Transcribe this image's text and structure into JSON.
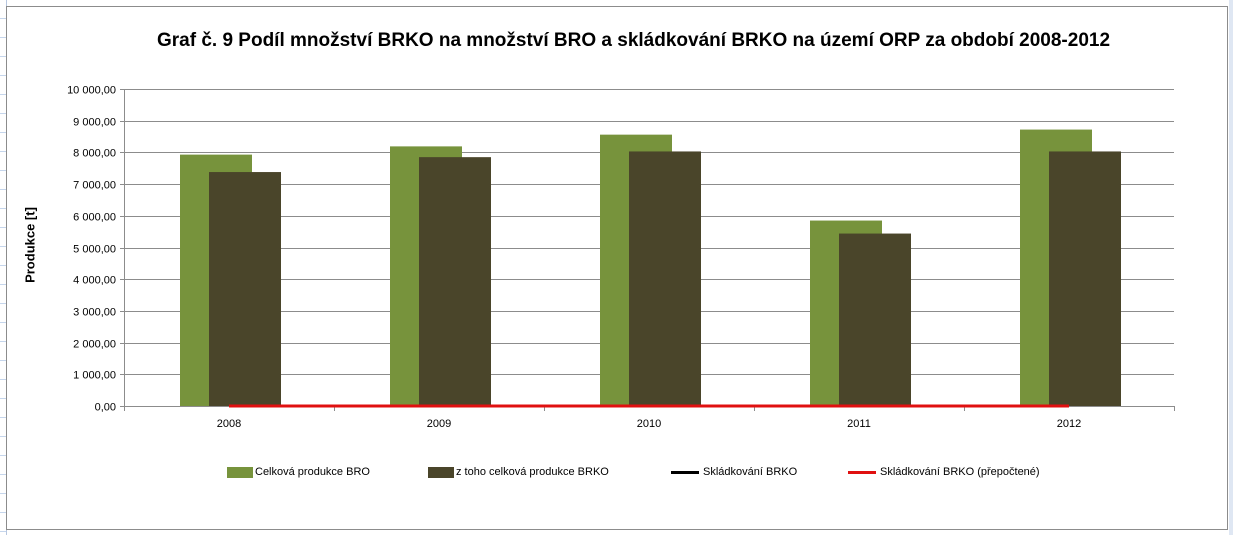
{
  "chart_data": {
    "type": "bar",
    "title": "Graf č. 9 Podíl množství BRKO na množství BRO a skládkování BRKO na území ORP za období 2008-2012",
    "xlabel": "",
    "ylabel": "Produkce [t]",
    "categories": [
      "2008",
      "2009",
      "2010",
      "2011",
      "2012"
    ],
    "ylim": [
      0,
      10000
    ],
    "yticks": [
      0,
      1000,
      2000,
      3000,
      4000,
      5000,
      6000,
      7000,
      8000,
      9000,
      10000
    ],
    "ytick_labels": [
      "0,00",
      "1 000,00",
      "2 000,00",
      "3 000,00",
      "4 000,00",
      "5 000,00",
      "6 000,00",
      "7 000,00",
      "8 000,00",
      "9 000,00",
      "10 000,00"
    ],
    "grid": true,
    "legend_position": "bottom",
    "series": [
      {
        "name": "Celková produkce BRO",
        "kind": "bar",
        "color": "#77933c",
        "values": [
          7930,
          8190,
          8560,
          5850,
          8720
        ]
      },
      {
        "name": "z toho celková produkce BRKO",
        "kind": "bar",
        "color": "#4a452a",
        "values": [
          7380,
          7850,
          8030,
          5440,
          8030
        ]
      },
      {
        "name": "Skládkování BRKO",
        "kind": "line",
        "color": "#000000",
        "values": [
          0,
          0,
          0,
          0,
          0
        ]
      },
      {
        "name": "Skládkování BRKO (přepočtené)",
        "kind": "line",
        "color": "#e01010",
        "values": [
          0,
          0,
          0,
          0,
          0
        ]
      }
    ]
  }
}
